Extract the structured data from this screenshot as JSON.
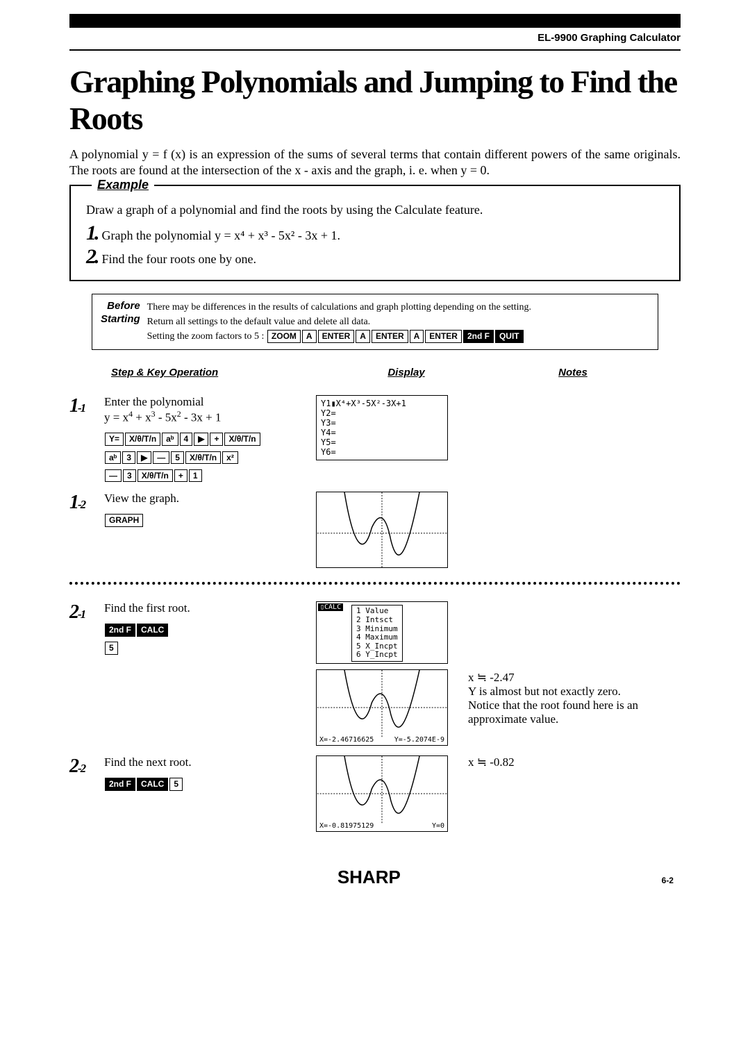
{
  "header": {
    "product": "EL-9900 Graphing Calculator"
  },
  "title": "Graphing Polynomials and Jumping to Find the Roots",
  "intro": "A polynomial y = f (x) is an expression of the sums of several terms that contain different powers of the same originals. The roots are found at the intersection of the x - axis and the graph, i. e. when y = 0.",
  "example": {
    "label": "Example",
    "intro": "Draw a graph of a polynomial and find the roots by using the Calculate feature.",
    "s1_num": "1.",
    "s1_text": "Graph the polynomial y = x⁴ + x³ - 5x² - 3x + 1.",
    "s2_num": "2.",
    "s2_text": "Find the four roots one by one."
  },
  "before": {
    "label1": "Before",
    "label2": "Starting",
    "line1": "There may be differences in the results of calculations and graph plotting depending on the setting.",
    "line2": "Return all settings to the default value and delete all data.",
    "line3": "Setting the zoom factors to 5 :",
    "keys": [
      "ZOOM",
      "A",
      "ENTER",
      "A",
      "ENTER",
      "A",
      "ENTER",
      "2nd F",
      "QUIT"
    ]
  },
  "cols": {
    "op": "Step & Key Operation",
    "disp": "Display",
    "notes": "Notes"
  },
  "steps": {
    "s11": {
      "num": "1",
      "sub": "-1",
      "text1": "Enter the polynomial",
      "text2html": "y = x<sup>4</sup> + x<sup>3</sup> - 5x<sup>2</sup> - 3x + 1",
      "row1": [
        "Y=",
        "X/θ/T/n",
        "aᵇ",
        "4",
        "▶",
        "+",
        "X/θ/T/n"
      ],
      "row2": [
        "aᵇ",
        "3",
        "▶",
        "—",
        "5",
        "X/θ/T/n",
        "x²"
      ],
      "row3": [
        "—",
        "3",
        "X/θ/T/n",
        "+",
        "1"
      ],
      "screen_lines": [
        "Y1▮X⁴+X³-5X²-3X+1",
        "Y2=",
        "Y3=",
        "Y4=",
        "Y5=",
        "Y6="
      ]
    },
    "s12": {
      "num": "1",
      "sub": "-2",
      "text": "View the graph.",
      "key": "GRAPH"
    },
    "s21": {
      "num": "2",
      "sub": "-1",
      "text": "Find the first root.",
      "keys1": [
        "2nd F",
        "CALC"
      ],
      "keys2": [
        "5"
      ],
      "menu": [
        "1 Value",
        "2 Intsct",
        "3 Minimum",
        "4 Maximum",
        "5 X_Incpt",
        "6 Y_Incpt"
      ],
      "coordX": "X=-2.46716625",
      "coordY": "Y=-5.2074E-9",
      "note1": "x ≒ -2.47",
      "note2": "Y is almost but not exactly zero.",
      "note3": "Notice that the root found here is an approximate value."
    },
    "s22": {
      "num": "2",
      "sub": "-2",
      "text": "Find the next root.",
      "keys": [
        "2nd F",
        "CALC",
        "5"
      ],
      "coordX": "X=-0.81975129",
      "coordY": "Y=0",
      "note": "x ≒ -0.82"
    }
  },
  "footer": {
    "logo": "SHARP",
    "page": "6-2"
  },
  "colors": {
    "text": "#000000",
    "bg": "#ffffff"
  }
}
